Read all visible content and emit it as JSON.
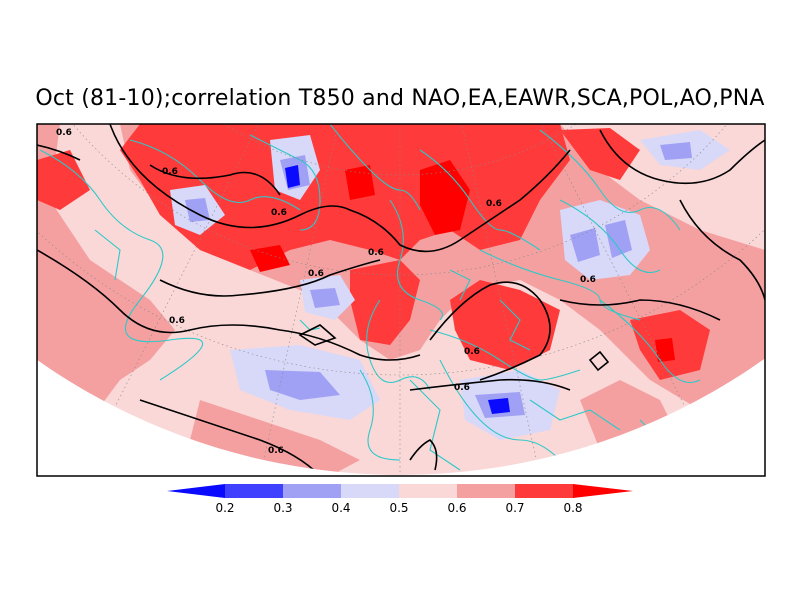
{
  "title": "Oct (81-10);correlation T850 and NAO,EA,EAWR,SCA,POL,AO,PNA",
  "colors": {
    "c_02": "#0a0aff",
    "c_03": "#4040ff",
    "c_04": "#a0a0f5",
    "c_05": "#d8d8f8",
    "c_06": "#fad8d8",
    "c_07": "#f5a0a0",
    "c_08": "#ff3a3a",
    "c_09": "#ff0000",
    "coast": "#2ec8c8",
    "contour": "#000000",
    "frame": "#000000"
  },
  "contour_label": "0.6",
  "colorbar": {
    "ticks": [
      "0.2",
      "0.3",
      "0.4",
      "0.5",
      "0.6",
      "0.7",
      "0.8"
    ]
  }
}
